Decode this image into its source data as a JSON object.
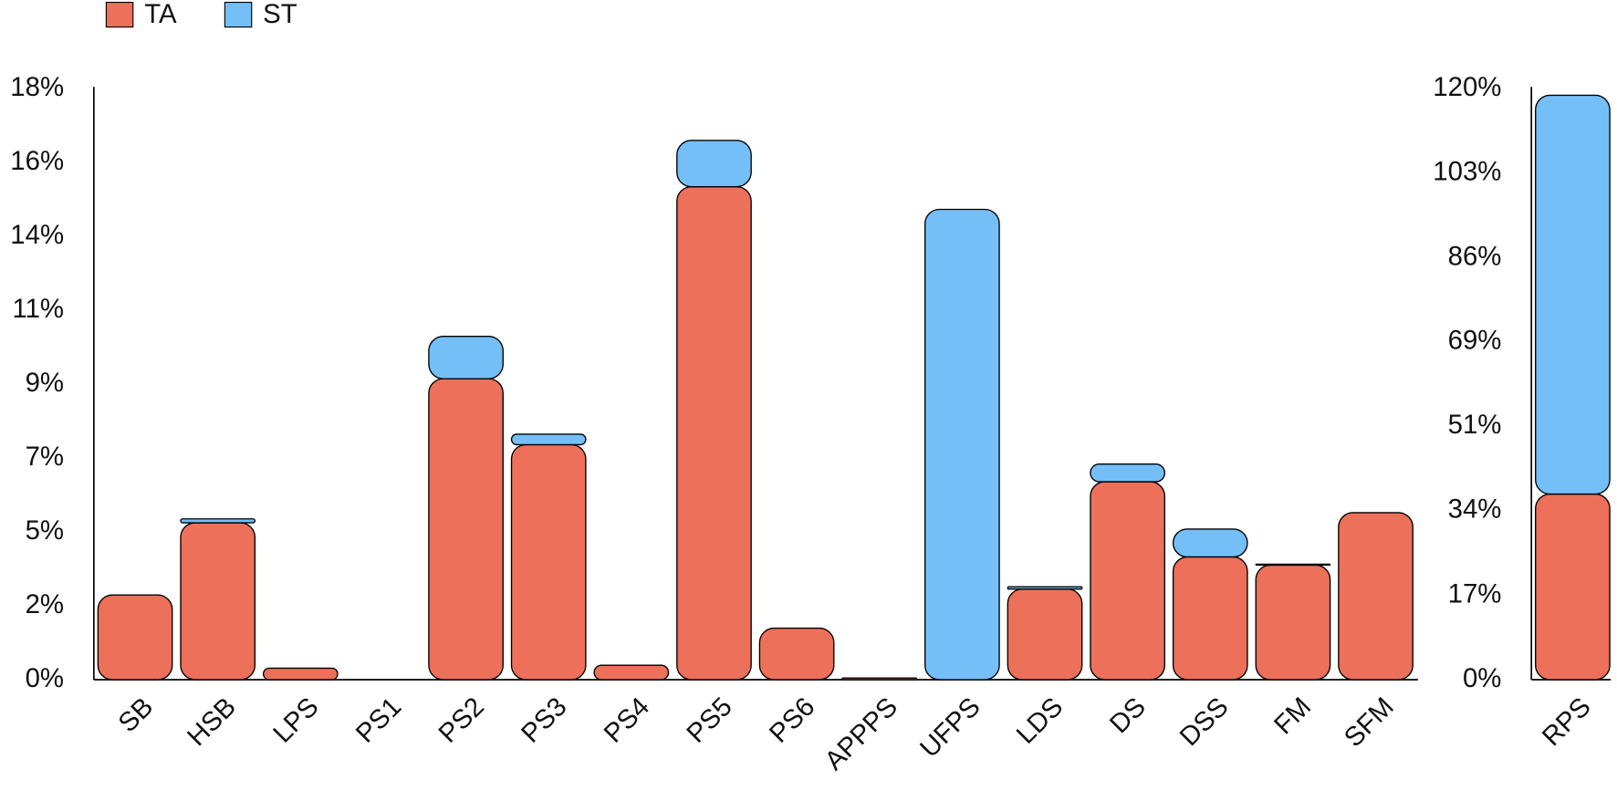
{
  "chart_data": [
    {
      "type": "bar",
      "stacked": true,
      "categories": [
        "SB",
        "HSB",
        "LPS",
        "PS1",
        "PS2",
        "PS3",
        "PS4",
        "PS5",
        "PS6",
        "APPPS",
        "UFPS",
        "LDS",
        "DS",
        "DSS",
        "FM",
        "SFM"
      ],
      "series": [
        {
          "name": "TA",
          "color": "#ec705a",
          "values": [
            2.58,
            4.78,
            0.35,
            0,
            9.17,
            7.16,
            0.44,
            15.02,
            1.57,
            0.05,
            0,
            2.76,
            6.03,
            3.74,
            3.49,
            5.09
          ]
        },
        {
          "name": "ST",
          "color": "#74bff8",
          "values": [
            0,
            0.12,
            0,
            0,
            1.29,
            0.32,
            0,
            1.41,
            0,
            0,
            14.33,
            0.07,
            0.54,
            0.85,
            0.03,
            0
          ]
        }
      ],
      "ylim": [
        0,
        18
      ],
      "yticks": [
        0,
        {
          "value": 2.25,
          "label": "2%"
        },
        {
          "value": 4.5,
          "label": "5%"
        },
        {
          "value": 6.75,
          "label": "7%"
        },
        {
          "value": 9,
          "label": "9%"
        },
        {
          "value": 11.25,
          "label": "11%"
        },
        {
          "value": 13.5,
          "label": "14%"
        },
        {
          "value": 15.75,
          "label": "16%"
        },
        {
          "value": 18,
          "label": "18%"
        }
      ],
      "ytick_suffix": "%"
    },
    {
      "type": "bar",
      "stacked": true,
      "categories": [
        "RPS"
      ],
      "series": [
        {
          "color": "#ec705a",
          "values": [
            37.7
          ]
        },
        {
          "color": "#74bff8",
          "values": [
            81.0
          ]
        }
      ],
      "ylim": [
        0,
        120
      ],
      "yticks": [
        0,
        {
          "value": 17.14,
          "label": "17%"
        },
        {
          "value": 34.29,
          "label": "34%"
        },
        {
          "value": 51.43,
          "label": "51%"
        },
        {
          "value": 68.57,
          "label": "69%"
        },
        {
          "value": 85.71,
          "label": "86%"
        },
        {
          "value": 102.86,
          "label": "103%"
        },
        {
          "value": 120,
          "label": "120%"
        }
      ],
      "ytick_suffix": "%"
    }
  ]
}
